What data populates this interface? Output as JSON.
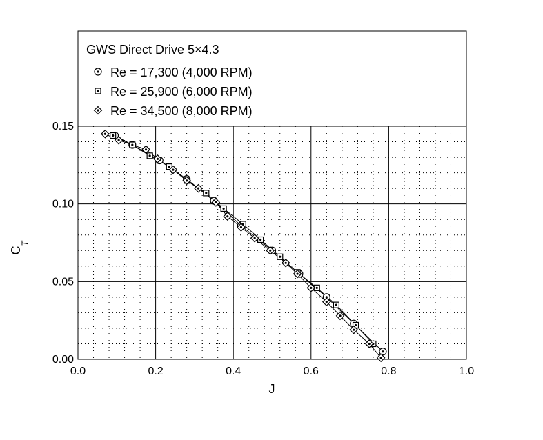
{
  "chart_data": {
    "type": "line",
    "title": "GWS Direct Drive 5×4.3",
    "xlabel": "J",
    "ylabel": "C",
    "ylabel_sub": "T",
    "xlim": [
      0.0,
      1.0
    ],
    "ylim": [
      0.0,
      0.15
    ],
    "xticks": [
      "0.0",
      "0.2",
      "0.4",
      "0.6",
      "0.8",
      "1.0"
    ],
    "yticks": [
      "0.00",
      "0.05",
      "0.10",
      "0.15"
    ],
    "grid": true,
    "legend_position": "top (inside box)",
    "series": [
      {
        "name": "Re = 17,300 (4,000 RPM)",
        "marker": "circle-dot",
        "x": [
          0.095,
          0.14,
          0.21,
          0.28,
          0.35,
          0.42,
          0.5,
          0.57,
          0.64,
          0.71,
          0.785
        ],
        "y": [
          0.144,
          0.138,
          0.128,
          0.116,
          0.102,
          0.086,
          0.07,
          0.055,
          0.04,
          0.023,
          0.005
        ]
      },
      {
        "name": "Re = 25,900 (6,000 RPM)",
        "marker": "square-dot",
        "x": [
          0.09,
          0.14,
          0.185,
          0.235,
          0.28,
          0.33,
          0.375,
          0.425,
          0.47,
          0.52,
          0.565,
          0.615,
          0.665,
          0.715,
          0.76
        ],
        "y": [
          0.144,
          0.138,
          0.131,
          0.124,
          0.115,
          0.107,
          0.097,
          0.087,
          0.077,
          0.066,
          0.056,
          0.046,
          0.035,
          0.022,
          0.01
        ]
      },
      {
        "name": "Re = 34,500 (8,000 RPM)",
        "marker": "diamond-dot",
        "x": [
          0.07,
          0.105,
          0.175,
          0.205,
          0.245,
          0.28,
          0.31,
          0.355,
          0.385,
          0.42,
          0.455,
          0.495,
          0.535,
          0.565,
          0.6,
          0.64,
          0.675,
          0.71,
          0.75,
          0.78
        ],
        "y": [
          0.145,
          0.141,
          0.135,
          0.129,
          0.122,
          0.115,
          0.11,
          0.101,
          0.092,
          0.085,
          0.078,
          0.07,
          0.062,
          0.055,
          0.046,
          0.037,
          0.028,
          0.019,
          0.01,
          0.001
        ]
      }
    ]
  }
}
